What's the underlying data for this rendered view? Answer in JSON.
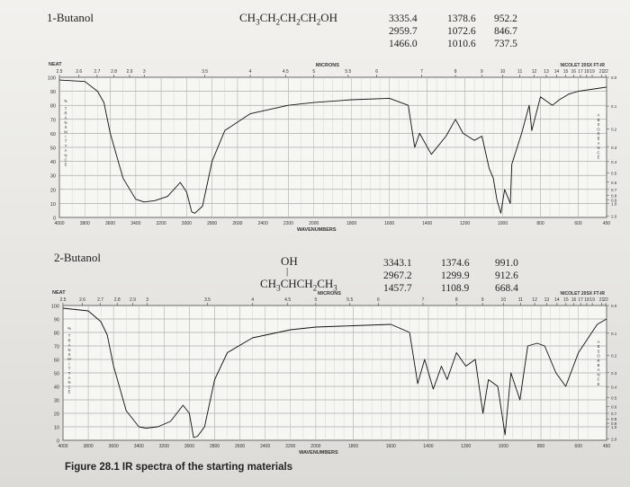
{
  "chart_data": [
    {
      "type": "line",
      "compound": "1-Butanol",
      "formula": "CH3CH2CH2CH2OH",
      "peak_columns": [
        [
          "3335.4",
          "2959.7",
          "1466.0"
        ],
        [
          "1378.6",
          "1072.6",
          "1010.6"
        ],
        [
          "952.2",
          "846.7",
          "737.5"
        ]
      ],
      "sample_label": "NEAT",
      "instrument_label": "NICOLET 20SX FT-IR",
      "top_axis_label": "MICRONS",
      "bottom_axis_label": "WAVENUMBERS",
      "left_axis_label": "% TRANSMITTANCE",
      "right_axis_label": "ABSORBANCE",
      "micron_ticks": [
        "2.5",
        "2.6",
        "2.7",
        "2.8",
        "2.9",
        "3",
        "3.5",
        "4",
        "4.5",
        "5",
        "5.5",
        "6",
        "7",
        "8",
        "9",
        "10",
        "11",
        "12",
        "13",
        "14",
        "15",
        "16",
        "17",
        "18",
        "19",
        "21",
        "22"
      ],
      "wavenumber_ticks": [
        "4000",
        "3800",
        "3600",
        "3400",
        "3200",
        "3000",
        "2800",
        "2600",
        "2400",
        "2200",
        "2000",
        "1800",
        "1600",
        "1400",
        "1200",
        "1000",
        "800",
        "600",
        "450"
      ],
      "y_ticks": [
        "100",
        "90",
        "80",
        "70",
        "60",
        "50",
        "40",
        "30",
        "20",
        "10",
        "0"
      ],
      "absorbance_ticks": [
        "0.0",
        "0.1",
        "0.2",
        "0.3",
        "0.4",
        "0.5",
        "0.6",
        "0.7",
        "0.8",
        "0.9",
        "1.0",
        "2.0"
      ],
      "ylim": [
        0,
        100
      ],
      "x": [
        4000,
        3800,
        3700,
        3650,
        3600,
        3500,
        3400,
        3335,
        3250,
        3150,
        3050,
        3000,
        2960,
        2935,
        2875,
        2800,
        2700,
        2500,
        2200,
        2000,
        1800,
        1600,
        1500,
        1466,
        1440,
        1378,
        1300,
        1250,
        1210,
        1150,
        1110,
        1072,
        1050,
        1030,
        1010,
        990,
        960,
        952,
        900,
        860,
        846,
        800,
        737,
        700,
        650,
        600,
        500,
        450
      ],
      "y": [
        98,
        97,
        90,
        82,
        60,
        28,
        13,
        11,
        12,
        15,
        25,
        18,
        4,
        3,
        8,
        40,
        62,
        74,
        80,
        82,
        84,
        85,
        80,
        50,
        60,
        45,
        58,
        70,
        60,
        55,
        58,
        35,
        28,
        12,
        3,
        20,
        10,
        38,
        60,
        80,
        62,
        86,
        80,
        84,
        88,
        90,
        92,
        93
      ]
    },
    {
      "type": "line",
      "compound": "2-Butanol",
      "formula_top": "OH",
      "formula": "CH3CHCH2CH3",
      "peak_columns": [
        [
          "3343.1",
          "2967.2",
          "1457.7"
        ],
        [
          "1374.6",
          "1299.9",
          "1108.9"
        ],
        [
          "991.0",
          "912.6",
          "668.4"
        ]
      ],
      "sample_label": "NEAT",
      "instrument_label": "NICOLET 20SX FT-IR",
      "top_axis_label": "MICRONS",
      "bottom_axis_label": "WAVENUMBERS",
      "left_axis_label": "% TRANSMITTANCE",
      "right_axis_label": "ABSORBANCE",
      "micron_ticks": [
        "2.5",
        "2.6",
        "2.7",
        "2.8",
        "2.9",
        "3",
        "3.5",
        "4",
        "4.5",
        "5",
        "5.5",
        "6",
        "7",
        "8",
        "9",
        "10",
        "11",
        "12",
        "13",
        "14",
        "15",
        "16",
        "17",
        "18",
        "19",
        "21",
        "22"
      ],
      "wavenumber_ticks": [
        "4000",
        "3800",
        "3600",
        "3400",
        "3200",
        "3000",
        "2800",
        "2600",
        "2400",
        "2200",
        "2000",
        "1800",
        "1600",
        "1400",
        "1200",
        "1000",
        "800",
        "600",
        "450"
      ],
      "y_ticks": [
        "100",
        "90",
        "80",
        "70",
        "60",
        "50",
        "40",
        "30",
        "20",
        "10",
        "0"
      ],
      "absorbance_ticks": [
        "0.0",
        "0.1",
        "0.2",
        "0.3",
        "0.4",
        "0.5",
        "0.6",
        "0.7",
        "0.8",
        "0.9",
        "1.0",
        "2.0"
      ],
      "ylim": [
        0,
        100
      ],
      "x": [
        4000,
        3800,
        3700,
        3650,
        3600,
        3500,
        3400,
        3343,
        3250,
        3150,
        3050,
        3000,
        2967,
        2935,
        2880,
        2800,
        2700,
        2500,
        2200,
        2000,
        1800,
        1600,
        1500,
        1457,
        1420,
        1374,
        1330,
        1300,
        1250,
        1200,
        1150,
        1109,
        1080,
        1030,
        991,
        960,
        912,
        870,
        820,
        780,
        720,
        668,
        600,
        500,
        450
      ],
      "y": [
        98,
        96,
        88,
        78,
        55,
        22,
        10,
        9,
        10,
        14,
        26,
        20,
        2,
        3,
        10,
        45,
        65,
        76,
        82,
        84,
        85,
        86,
        80,
        42,
        60,
        38,
        55,
        45,
        65,
        55,
        60,
        20,
        45,
        40,
        4,
        50,
        30,
        70,
        72,
        70,
        50,
        40,
        65,
        86,
        90
      ]
    }
  ],
  "figure_caption": "Figure 28.1 IR spectra of the starting materials"
}
